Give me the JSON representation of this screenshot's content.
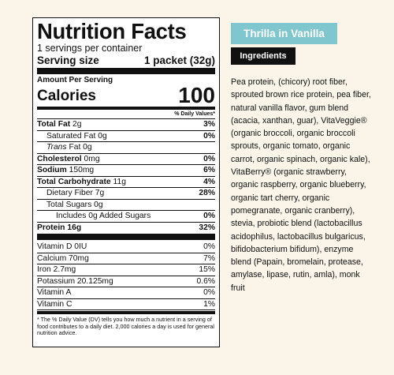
{
  "nutrition": {
    "title": "Nutrition Facts",
    "servings_per_container": "1 servings per container",
    "serving_size_label": "Serving size",
    "serving_size_value": "1 packet (32g)",
    "amount_per_serving": "Amount Per Serving",
    "calories_label": "Calories",
    "calories_value": "100",
    "daily_values_header": "% Daily Values*",
    "nutrients": [
      {
        "label": "Total Fat",
        "amount": "2g",
        "dv": "3%"
      },
      {
        "label": "Saturated Fat 0g",
        "dv": "0%"
      },
      {
        "label": "Trans",
        "amount": "Fat 0g"
      },
      {
        "label": "Cholesterol",
        "amount": "0mg",
        "dv": "0%"
      },
      {
        "label": "Sodium",
        "amount": "150mg",
        "dv": "6%"
      },
      {
        "label": "Total Carbohydrate",
        "amount": "11g",
        "dv": "4%"
      },
      {
        "label": "Dietary Fiber 7g",
        "dv": "28%"
      },
      {
        "label": "Total Sugars 0g"
      },
      {
        "label": "Includes 0g Added Sugars",
        "dv": "0%"
      },
      {
        "label": "Protein",
        "amount": "16g",
        "dv": "32%"
      }
    ],
    "vitamins": [
      {
        "label": "Vitamin D 0IU",
        "dv": "0%"
      },
      {
        "label": "Calcium 70mg",
        "dv": "7%"
      },
      {
        "label": "Iron 2.7mg",
        "dv": "15%"
      },
      {
        "label": "Potassium 20.125mg",
        "dv": "0.6%"
      },
      {
        "label": "Vitamin A",
        "dv": "0%"
      },
      {
        "label": "Vitamin C",
        "dv": "1%"
      }
    ],
    "footnote": "* The % Daily Value (DV) tells you how much a nutrient in a serving of food contributes to a daily diet. 2,000 calories a day is used for general nutrition advice."
  },
  "product": {
    "name": "Thrilla in Vanilla",
    "ingredients_heading": "Ingredients",
    "ingredients_text": "Pea protein, (chicory) root fiber, sprouted brown rice protein, pea fiber, natural vanilla flavor, gum blend (acacia, xanthan, guar), VitaVeggie® (organic broccoli, organic broccoli sprouts, organic tomato, organic carrot, organic spinach, organic kale), VitaBerry® (organic strawberry, organic raspberry, organic blueberry, organic tart cherry, organic pomegranate, organic cranberry), stevia, probiotic blend (lactobacillus acidophilus, lactobacillus bulgaricus, bifidobacterium bifidum), enzyme blend (Papain, bromelain, protease, amylase, lipase, rutin, amla), monk fruit"
  },
  "colors": {
    "background": "#faf5e8",
    "badge": "#7fc6cf",
    "ingredients_heading_bg": "#111111"
  }
}
